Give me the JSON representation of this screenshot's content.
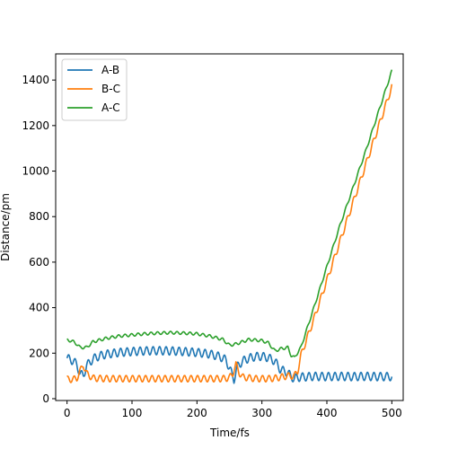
{
  "chart_data": {
    "type": "line",
    "title": "",
    "xlabel": "Time/fs",
    "ylabel": "Distance/pm",
    "xlim": [
      -17.5,
      517.5
    ],
    "ylim": [
      -8,
      1515
    ],
    "xticks": [
      0,
      100,
      200,
      300,
      400,
      500
    ],
    "yticks": [
      0,
      200,
      400,
      600,
      800,
      1000,
      1200,
      1400
    ],
    "grid": false,
    "legend_position": "top-left",
    "series": [
      {
        "name": "A-B",
        "color": "#1f77b4",
        "x": [
          0,
          5,
          10,
          15,
          20,
          25,
          30,
          40,
          50,
          60,
          80,
          100,
          120,
          140,
          160,
          180,
          200,
          220,
          235,
          245,
          252,
          257,
          262,
          270,
          280,
          290,
          300,
          310,
          320,
          328,
          335,
          340,
          345,
          350,
          360,
          380,
          400,
          420,
          440,
          460,
          480,
          500
        ],
        "values": [
          178,
          172,
          165,
          150,
          110,
          100,
          145,
          175,
          188,
          195,
          203,
          207,
          210,
          211,
          210,
          207,
          203,
          196,
          185,
          170,
          120,
          85,
          140,
          165,
          178,
          185,
          186,
          180,
          165,
          130,
          120,
          115,
          95,
          90,
          95,
          98,
          97,
          98,
          97,
          98,
          97,
          97
        ],
        "oscillation_amplitude": 18
      },
      {
        "name": "B-C",
        "color": "#ff7f0e",
        "x": [
          0,
          10,
          15,
          20,
          25,
          30,
          40,
          60,
          80,
          100,
          120,
          140,
          160,
          180,
          200,
          220,
          240,
          250,
          255,
          260,
          265,
          270,
          290,
          310,
          320,
          330,
          340,
          350,
          355,
          360,
          370,
          380,
          400,
          420,
          440,
          460,
          480,
          500
        ],
        "values": [
          85,
          85,
          90,
          120,
          150,
          110,
          90,
          88,
          88,
          88,
          88,
          88,
          88,
          88,
          88,
          88,
          88,
          92,
          110,
          150,
          115,
          95,
          88,
          88,
          90,
          95,
          100,
          100,
          120,
          190,
          270,
          350,
          520,
          690,
          860,
          1030,
          1200,
          1370
        ],
        "oscillation_amplitude": 14
      },
      {
        "name": "A-C",
        "color": "#2ca02c",
        "x": [
          0,
          5,
          10,
          15,
          20,
          30,
          40,
          60,
          80,
          100,
          120,
          140,
          160,
          180,
          200,
          220,
          240,
          250,
          260,
          280,
          300,
          310,
          320,
          330,
          340,
          345,
          350,
          360,
          380,
          400,
          420,
          440,
          460,
          480,
          500
        ],
        "values": [
          258,
          255,
          250,
          240,
          225,
          225,
          250,
          265,
          275,
          280,
          285,
          288,
          290,
          288,
          285,
          275,
          260,
          235,
          240,
          260,
          255,
          245,
          210,
          220,
          225,
          190,
          180,
          225,
          400,
          580,
          760,
          925,
          1090,
          1265,
          1440
        ],
        "oscillation_amplitude": 6
      }
    ]
  }
}
